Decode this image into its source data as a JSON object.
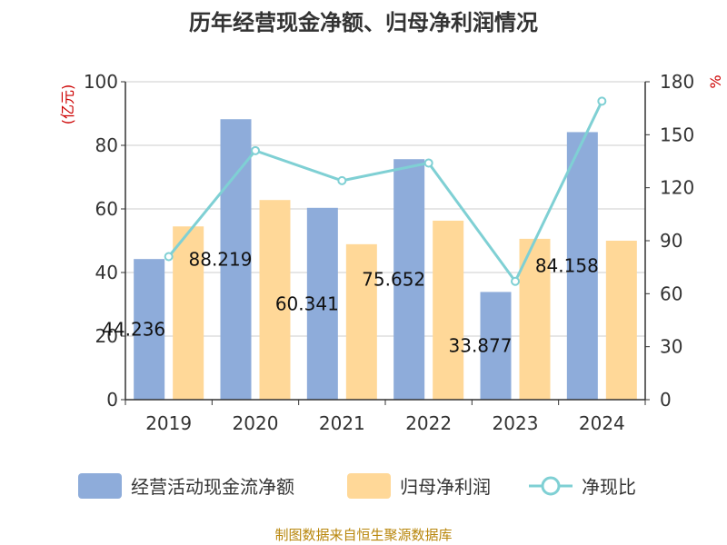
{
  "chart_data": {
    "type": "bar",
    "title": "历年经营现金净额、归母净利润情况",
    "categories": [
      "2019",
      "2020",
      "2021",
      "2022",
      "2023",
      "2024"
    ],
    "series": [
      {
        "name": "经营活动现金流净额",
        "type": "bar",
        "axis": "left",
        "values": [
          44.236,
          88.219,
          60.341,
          75.652,
          33.877,
          84.158
        ],
        "labels": [
          "44.236",
          "88.219",
          "60.341",
          "75.652",
          "33.877",
          "84.158"
        ],
        "color": "#8eacda"
      },
      {
        "name": "归母净利润",
        "type": "bar",
        "axis": "left",
        "values": [
          54.5,
          62.8,
          48.9,
          56.3,
          50.6,
          50.0
        ],
        "color": "#ffd898"
      },
      {
        "name": "净现比",
        "type": "line",
        "axis": "right",
        "values": [
          81,
          141,
          124,
          134,
          67,
          169
        ],
        "color": "#7fd0d4"
      }
    ],
    "y_left": {
      "label": "(亿元)",
      "ticks": [
        "0",
        "20",
        "40",
        "60",
        "80",
        "100"
      ],
      "range": [
        0,
        100
      ]
    },
    "y_right": {
      "label": "%",
      "ticks": [
        "0",
        "30",
        "60",
        "90",
        "120",
        "150",
        "180"
      ],
      "range": [
        0,
        180
      ]
    },
    "source": "制图数据来自恒生聚源数据库"
  }
}
